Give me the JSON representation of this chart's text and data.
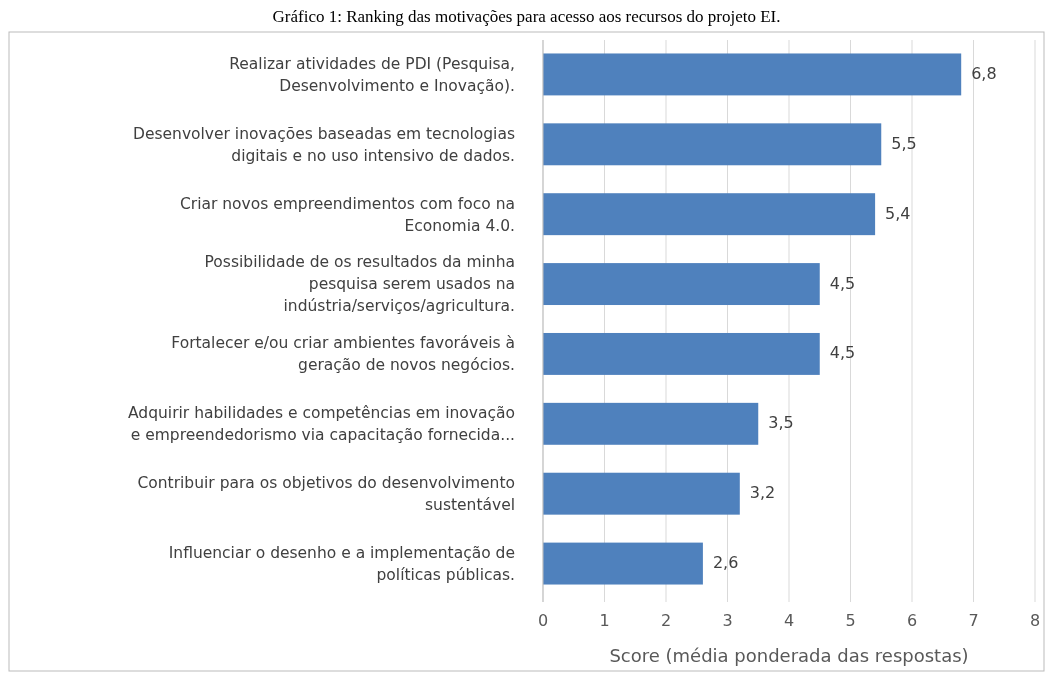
{
  "chart_data": {
    "type": "bar",
    "orientation": "horizontal",
    "title": "Gráfico 1: Ranking das motivações para acesso aos recursos do projeto EI.",
    "xlabel": "Score (média ponderada das respostas)",
    "categories": [
      "Realizar atividades de PDI (Pesquisa, Desenvolvimento e Inovação).",
      "Desenvolver inovações baseadas em tecnologias digitais e no uso intensivo de dados.",
      "Criar novos empreendimentos com foco na Economia 4.0.",
      "Possibilidade de os resultados da minha pesquisa serem usados na indústria/serviços/agricultura.",
      "Fortalecer e/ou criar ambientes favoráveis à geração de novos negócios.",
      "Adquirir habilidades e competências em inovação e empreendedorismo via capacitação fornecida...",
      "Contribuir para os objetivos do desenvolvimento sustentável",
      "Influenciar o desenho e a implementação de políticas públicas."
    ],
    "values": [
      6.8,
      5.5,
      5.4,
      4.5,
      4.5,
      3.5,
      3.2,
      2.6
    ],
    "value_labels": [
      "6,8",
      "5,5",
      "5,4",
      "4,5",
      "4,5",
      "3,5",
      "3,2",
      "2,6"
    ],
    "color": "#4f81bd",
    "xlim": [
      0,
      8
    ],
    "xticks": [
      0,
      1,
      2,
      3,
      4,
      5,
      6,
      7,
      8
    ],
    "grid": "x"
  }
}
